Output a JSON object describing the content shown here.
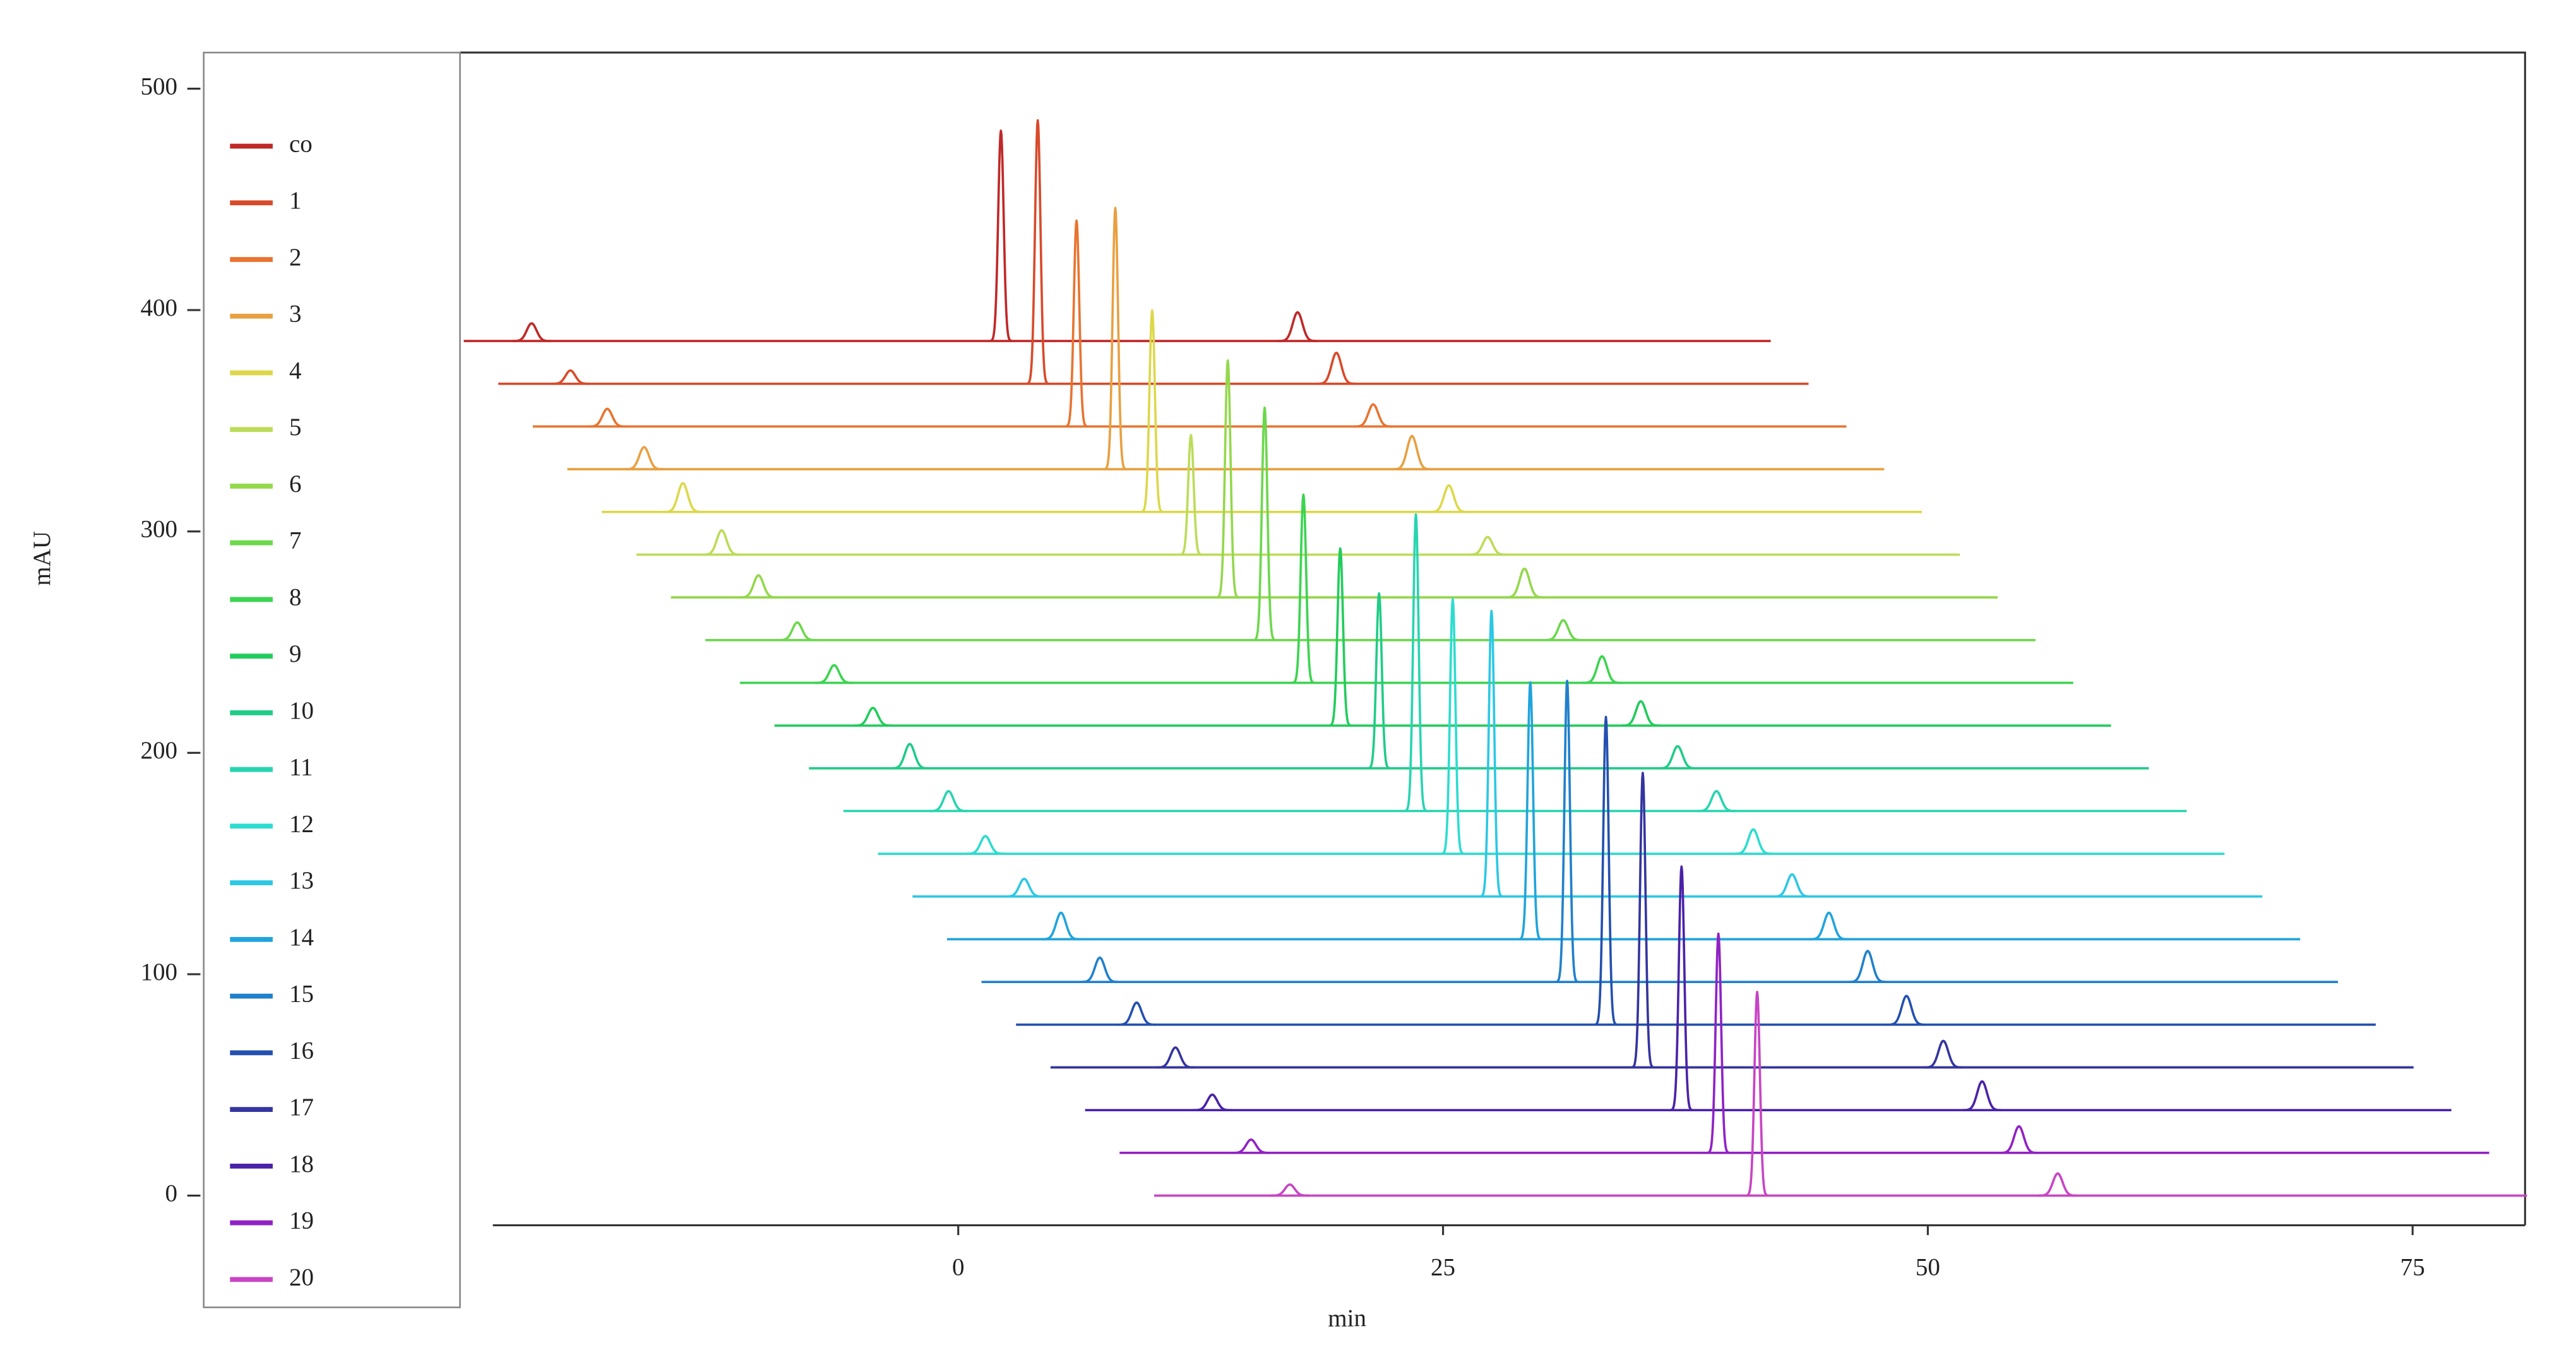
{
  "chart_data": {
    "type": "waterfall",
    "x_label": "min",
    "y_label": "mAU",
    "xlim": [
      -24.0,
      80.8
    ],
    "ylim": [
      -13.4,
      516.3
    ],
    "xticks": [
      0,
      25,
      50,
      75
    ],
    "yticks": [
      0,
      100,
      200,
      300,
      400,
      500
    ],
    "grid": false,
    "legend": "left",
    "series": [
      {
        "name": "co",
        "color": "#c02828",
        "x": [
          -22.0,
          2.2,
          17.5
        ],
        "values": [
          8,
          95,
          13
        ]
      },
      {
        "name": "1",
        "color": "#d84a2a",
        "x": [
          -20.0,
          4.1,
          19.5
        ],
        "values": [
          6,
          119,
          14
        ]
      },
      {
        "name": "2",
        "color": "#e87430",
        "x": [
          -18.1,
          6.1,
          21.4
        ],
        "values": [
          8,
          93,
          10
        ]
      },
      {
        "name": "3",
        "color": "#e8a040",
        "x": [
          -16.2,
          8.1,
          23.4
        ],
        "values": [
          10,
          118,
          15
        ]
      },
      {
        "name": "4",
        "color": "#dcd84a",
        "x": [
          -14.2,
          10.0,
          25.3
        ],
        "values": [
          13,
          91,
          12
        ]
      },
      {
        "name": "5",
        "color": "#bcdc58",
        "x": [
          -12.2,
          12.0,
          27.3
        ],
        "values": [
          11,
          54,
          8
        ]
      },
      {
        "name": "6",
        "color": "#94d84c",
        "x": [
          -10.3,
          13.9,
          29.2
        ],
        "values": [
          10,
          107,
          13
        ]
      },
      {
        "name": "7",
        "color": "#6cd84c",
        "x": [
          -8.3,
          15.8,
          31.2
        ],
        "values": [
          8,
          105,
          9
        ]
      },
      {
        "name": "8",
        "color": "#3cd450",
        "x": [
          -6.4,
          17.8,
          33.2
        ],
        "values": [
          8,
          85,
          12
        ]
      },
      {
        "name": "9",
        "color": "#22cc5c",
        "x": [
          -4.4,
          19.7,
          35.2
        ],
        "values": [
          8,
          80,
          11
        ]
      },
      {
        "name": "10",
        "color": "#20cc88",
        "x": [
          -2.5,
          21.7,
          37.1
        ],
        "values": [
          11,
          79,
          10
        ]
      },
      {
        "name": "11",
        "color": "#28d4b0",
        "x": [
          -0.5,
          23.6,
          39.1
        ],
        "values": [
          9,
          134,
          9
        ]
      },
      {
        "name": "12",
        "color": "#2cdcd0",
        "x": [
          1.4,
          25.5,
          41.0
        ],
        "values": [
          8,
          115,
          11
        ]
      },
      {
        "name": "13",
        "color": "#2cc8e4",
        "x": [
          3.4,
          27.5,
          43.0
        ],
        "values": [
          8,
          129,
          10
        ]
      },
      {
        "name": "14",
        "color": "#20a4dc",
        "x": [
          5.3,
          29.5,
          44.9
        ],
        "values": [
          12,
          116,
          12
        ]
      },
      {
        "name": "15",
        "color": "#2080cc",
        "x": [
          7.3,
          31.4,
          46.9
        ],
        "values": [
          11,
          136,
          14
        ]
      },
      {
        "name": "16",
        "color": "#2450b0",
        "x": [
          9.2,
          33.4,
          48.9
        ],
        "values": [
          10,
          139,
          13
        ]
      },
      {
        "name": "17",
        "color": "#3434a0",
        "x": [
          11.2,
          35.3,
          50.8
        ],
        "values": [
          9,
          133,
          12
        ]
      },
      {
        "name": "18",
        "color": "#4a22a8",
        "x": [
          13.1,
          37.3,
          52.8
        ],
        "values": [
          7,
          110,
          13
        ]
      },
      {
        "name": "19",
        "color": "#9022c4",
        "x": [
          15.1,
          39.2,
          54.7
        ],
        "values": [
          6,
          99,
          12
        ]
      },
      {
        "name": "20",
        "color": "#c844c4",
        "x": [
          17.1,
          41.2,
          56.7
        ],
        "values": [
          5,
          92,
          10
        ]
      }
    ]
  }
}
